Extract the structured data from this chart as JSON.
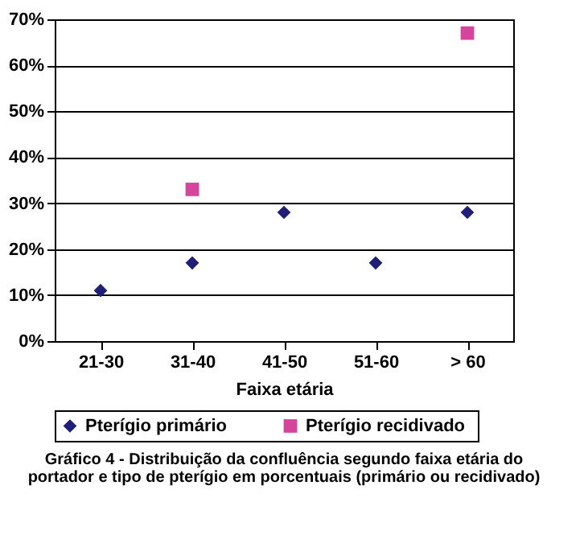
{
  "chart_data": {
    "type": "scatter",
    "title": "Gráfico 4 - Distribuição da confluência segundo faixa etária do portador e tipo de pterígio em porcentuais (primário ou recidivado)",
    "xlabel": "Faixa  etária",
    "categories": [
      "21-30",
      "31-40",
      "41-50",
      "51-60",
      "> 60"
    ],
    "series": [
      {
        "name": "Pterígio  primário",
        "color": "#1f1f78",
        "marker": "diamond",
        "values": [
          11,
          17,
          28,
          17,
          28
        ]
      },
      {
        "name": "Pterígio  recidivado",
        "color": "#d6449c",
        "marker": "square",
        "values": [
          null,
          33,
          null,
          null,
          67
        ]
      }
    ],
    "ylim": [
      0,
      70
    ],
    "yticks": [
      {
        "value": 0,
        "label": "0%"
      },
      {
        "value": 10,
        "label": "10%"
      },
      {
        "value": 20,
        "label": "20%"
      },
      {
        "value": 30,
        "label": "30%"
      },
      {
        "value": 40,
        "label": "40%"
      },
      {
        "value": 50,
        "label": "50%"
      },
      {
        "value": 60,
        "label": "60%"
      },
      {
        "value": 70,
        "label": "70%"
      }
    ],
    "grid": "y",
    "legend": "bottom"
  }
}
